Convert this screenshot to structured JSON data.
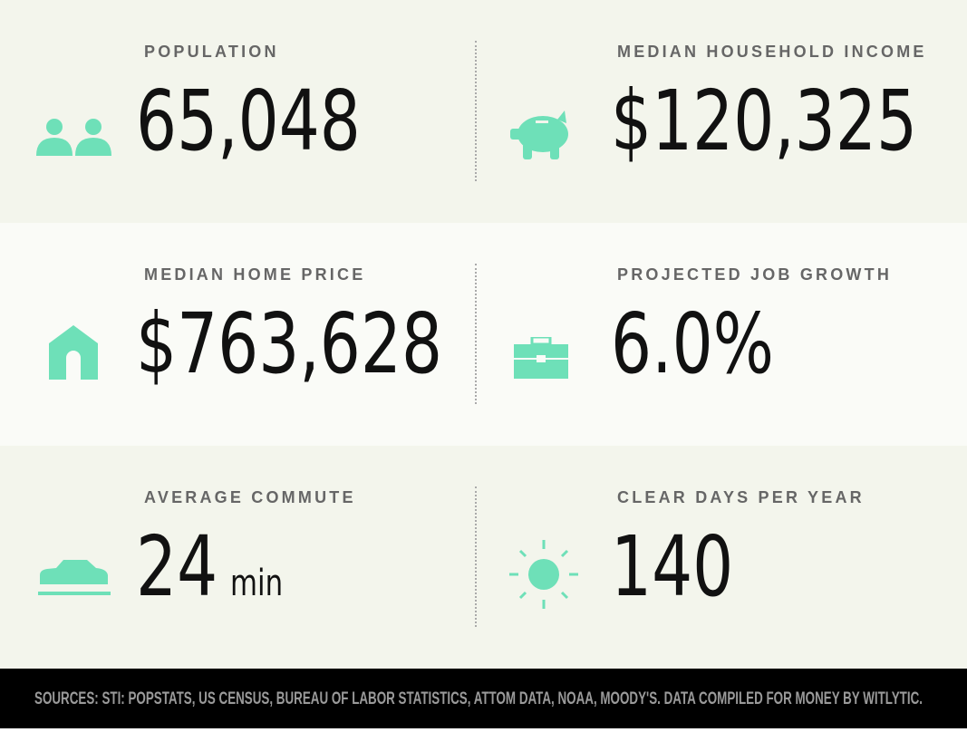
{
  "stats": [
    {
      "label": "POPULATION",
      "value": "65,048"
    },
    {
      "label": "MEDIAN HOUSEHOLD INCOME",
      "value": "$120,325"
    },
    {
      "label": "MEDIAN HOME PRICE",
      "value": "$763,628"
    },
    {
      "label": "PROJECTED JOB GROWTH",
      "value": "6.0%"
    },
    {
      "label": "AVERAGE COMMUTE",
      "value": "24",
      "unit": "min"
    },
    {
      "label": "CLEAR DAYS PER YEAR",
      "value": "140"
    }
  ],
  "footer": "SOURCES: STI: POPSTATS, US CENSUS, BUREAU OF LABOR STATISTICS, ATTOM DATA, NOAA, MOODY'S. DATA COMPILED FOR MONEY BY WITLYTIC."
}
